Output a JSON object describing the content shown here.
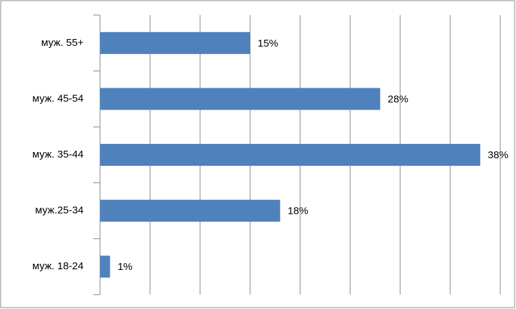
{
  "chart_data": {
    "type": "bar",
    "orientation": "horizontal",
    "categories": [
      "муж. 55+",
      "муж. 45-54",
      "муж. 35-44",
      "муж.25-34",
      "муж. 18-24"
    ],
    "values": [
      15,
      28,
      38,
      18,
      1
    ],
    "value_labels": [
      "15%",
      "28%",
      "38%",
      "18%",
      "1%"
    ],
    "color": "#4f81bd",
    "xlim": [
      0,
      40
    ],
    "xticks": [
      0,
      5,
      10,
      15,
      20,
      25,
      30,
      35,
      40
    ],
    "grid": true
  }
}
